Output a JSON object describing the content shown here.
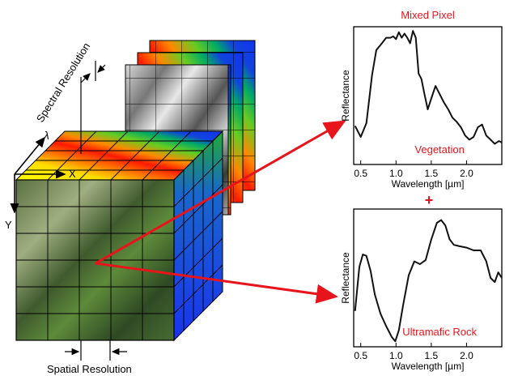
{
  "labels": {
    "spectral_resolution": "Spectral Resolution",
    "lambda": "λ",
    "x_axis": "X",
    "y_axis": "Y",
    "spatial_resolution": "Spatial Resolution",
    "plus": "+"
  },
  "plots": [
    {
      "title": "Mixed Pixel",
      "annotation": "Vegetation",
      "ylabel": "Reflectance",
      "xlabel": "Wavelength [µm]",
      "xticks": [
        "0.5",
        "1.0",
        "1.5",
        "2.0"
      ],
      "xlim": [
        0.4,
        2.5
      ],
      "ylim": [
        0,
        1
      ],
      "x": [
        0.42,
        0.5,
        0.58,
        0.66,
        0.72,
        0.8,
        0.86,
        0.92,
        0.96,
        1.0,
        1.04,
        1.08,
        1.12,
        1.16,
        1.2,
        1.24,
        1.28,
        1.32,
        1.36,
        1.4,
        1.45,
        1.5,
        1.56,
        1.62,
        1.68,
        1.74,
        1.8,
        1.86,
        1.92,
        1.98,
        2.04,
        2.1,
        2.16,
        2.22,
        2.28,
        2.34,
        2.4,
        2.46,
        2.5
      ],
      "y": [
        0.28,
        0.2,
        0.3,
        0.65,
        0.83,
        0.88,
        0.92,
        0.92,
        0.93,
        0.91,
        0.96,
        0.92,
        0.95,
        0.92,
        0.88,
        0.97,
        0.92,
        0.66,
        0.62,
        0.52,
        0.4,
        0.48,
        0.57,
        0.51,
        0.45,
        0.4,
        0.34,
        0.31,
        0.27,
        0.21,
        0.18,
        0.2,
        0.27,
        0.29,
        0.21,
        0.18,
        0.15,
        0.17,
        0.16
      ]
    },
    {
      "title": "",
      "annotation": "Ultramafic Rock",
      "ylabel": "Reflectance",
      "xlabel": "Wavelength [µm]",
      "xticks": [
        "0.5",
        "1.0",
        "1.5",
        "2.0"
      ],
      "xlim": [
        0.4,
        2.5
      ],
      "ylim": [
        0,
        1
      ],
      "x": [
        0.42,
        0.48,
        0.53,
        0.58,
        0.64,
        0.7,
        0.78,
        0.86,
        0.94,
        0.99,
        1.04,
        1.1,
        1.18,
        1.26,
        1.34,
        1.42,
        1.5,
        1.58,
        1.64,
        1.7,
        1.76,
        1.82,
        1.9,
        2.0,
        2.1,
        2.2,
        2.28,
        2.34,
        2.4,
        2.45,
        2.5
      ],
      "y": [
        0.26,
        0.58,
        0.67,
        0.66,
        0.55,
        0.38,
        0.24,
        0.15,
        0.07,
        0.04,
        0.12,
        0.3,
        0.52,
        0.62,
        0.6,
        0.63,
        0.78,
        0.9,
        0.92,
        0.88,
        0.78,
        0.74,
        0.73,
        0.72,
        0.7,
        0.7,
        0.62,
        0.5,
        0.47,
        0.54,
        0.5
      ]
    }
  ]
}
